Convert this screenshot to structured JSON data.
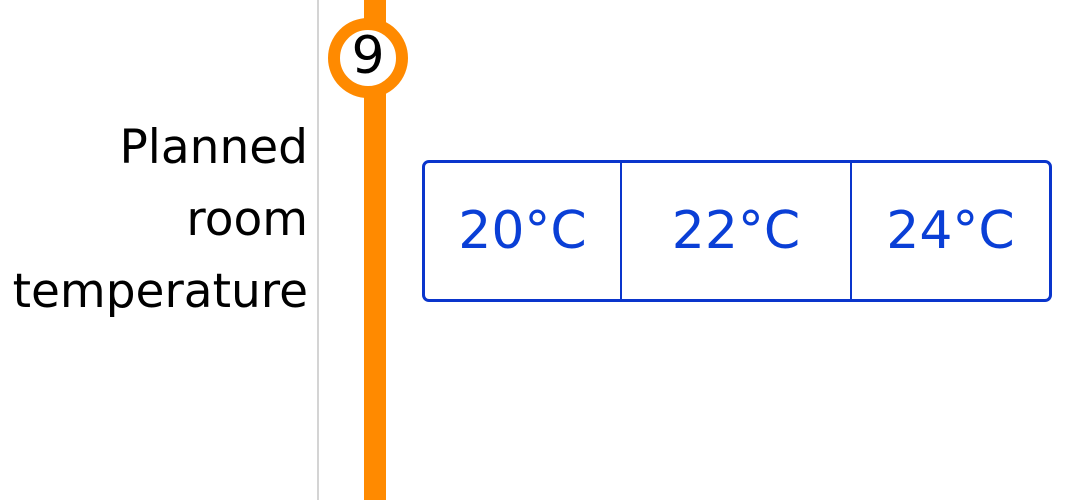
{
  "question": {
    "step_number": "9",
    "label_line1": "Planned",
    "label_line2": "room",
    "label_line3": "temperature"
  },
  "options": [
    {
      "label": "20°C"
    },
    {
      "label": "22°C"
    },
    {
      "label": "24°C"
    }
  ],
  "colors": {
    "accent_orange": "#ff8a00",
    "option_blue": "#0a3fd6",
    "divider_gray": "#d4d4d4"
  }
}
